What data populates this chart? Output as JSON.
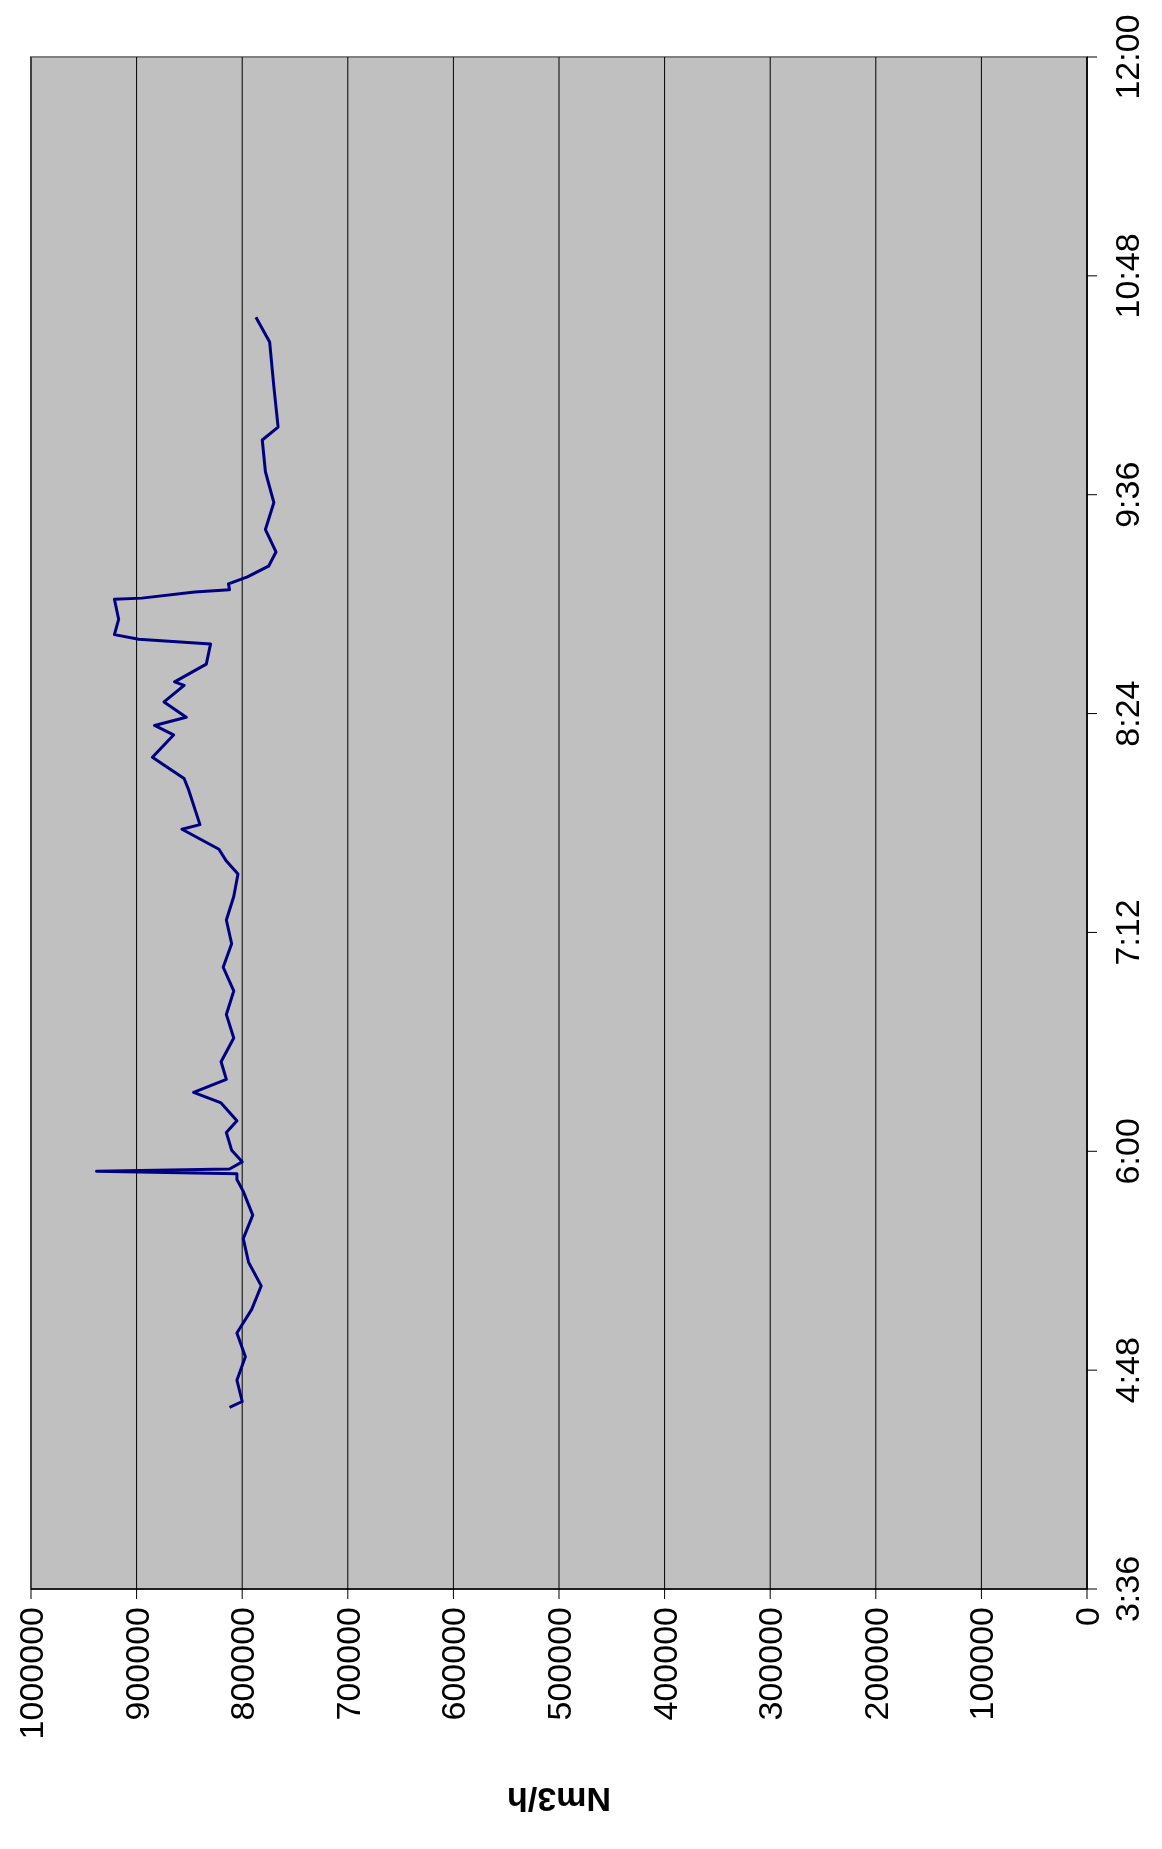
{
  "chart_data": {
    "type": "line",
    "xlabel": "Nm3/h",
    "grid": "x",
    "marker": "none",
    "line_style": "solid",
    "xlim": [
      1000000,
      0
    ],
    "ylim": [
      3.6,
      12
    ],
    "yticks": [
      {
        "value": 3.6,
        "label": "3:36"
      },
      {
        "value": 4.8,
        "label": "4:48"
      },
      {
        "value": 6,
        "label": "6:00"
      },
      {
        "value": 7.2,
        "label": "7:12"
      },
      {
        "value": 8.4,
        "label": "8:24"
      },
      {
        "value": 9.6,
        "label": "9:36"
      },
      {
        "value": 10.8,
        "label": "10:48"
      },
      {
        "value": 12,
        "label": "12:00"
      }
    ],
    "xticks": [
      1000000,
      900000,
      800000,
      700000,
      600000,
      500000,
      400000,
      300000,
      200000,
      100000,
      0
    ],
    "series": [
      {
        "color": "#000080",
        "x": [
          812000,
          800000,
          805000,
          797000,
          805000,
          791000,
          782000,
          794000,
          799000,
          790000,
          799000,
          805000,
          805000,
          938000,
          812000,
          800000,
          810000,
          815000,
          805000,
          820000,
          846000,
          815000,
          820000,
          808000,
          815000,
          808000,
          818000,
          810000,
          815000,
          808000,
          804000,
          815000,
          822000,
          857000,
          840000,
          851000,
          855000,
          885000,
          865000,
          883000,
          853000,
          874000,
          855000,
          864000,
          834000,
          830000,
          898000,
          921000,
          917000,
          921000,
          895000,
          845000,
          812000,
          813000,
          795000,
          775000,
          768000,
          778000,
          770000,
          778000,
          781000,
          766000,
          770000,
          774000,
          787000
        ],
        "values": [
          4.596,
          4.628,
          4.745,
          4.874,
          5.004,
          5.133,
          5.262,
          5.392,
          5.521,
          5.65,
          5.78,
          5.845,
          5.877,
          5.89,
          5.903,
          5.942,
          6.006,
          6.103,
          6.168,
          6.265,
          6.323,
          6.394,
          6.491,
          6.621,
          6.75,
          6.879,
          7.009,
          7.138,
          7.268,
          7.397,
          7.52,
          7.591,
          7.656,
          7.766,
          7.791,
          7.986,
          8.044,
          8.16,
          8.283,
          8.335,
          8.38,
          8.464,
          8.555,
          8.574,
          8.671,
          8.781,
          8.807,
          8.833,
          8.917,
          9.027,
          9.033,
          9.066,
          9.079,
          9.111,
          9.15,
          9.208,
          9.286,
          9.409,
          9.557,
          9.726,
          9.9,
          9.971,
          10.191,
          10.437,
          10.573
        ]
      }
    ]
  }
}
